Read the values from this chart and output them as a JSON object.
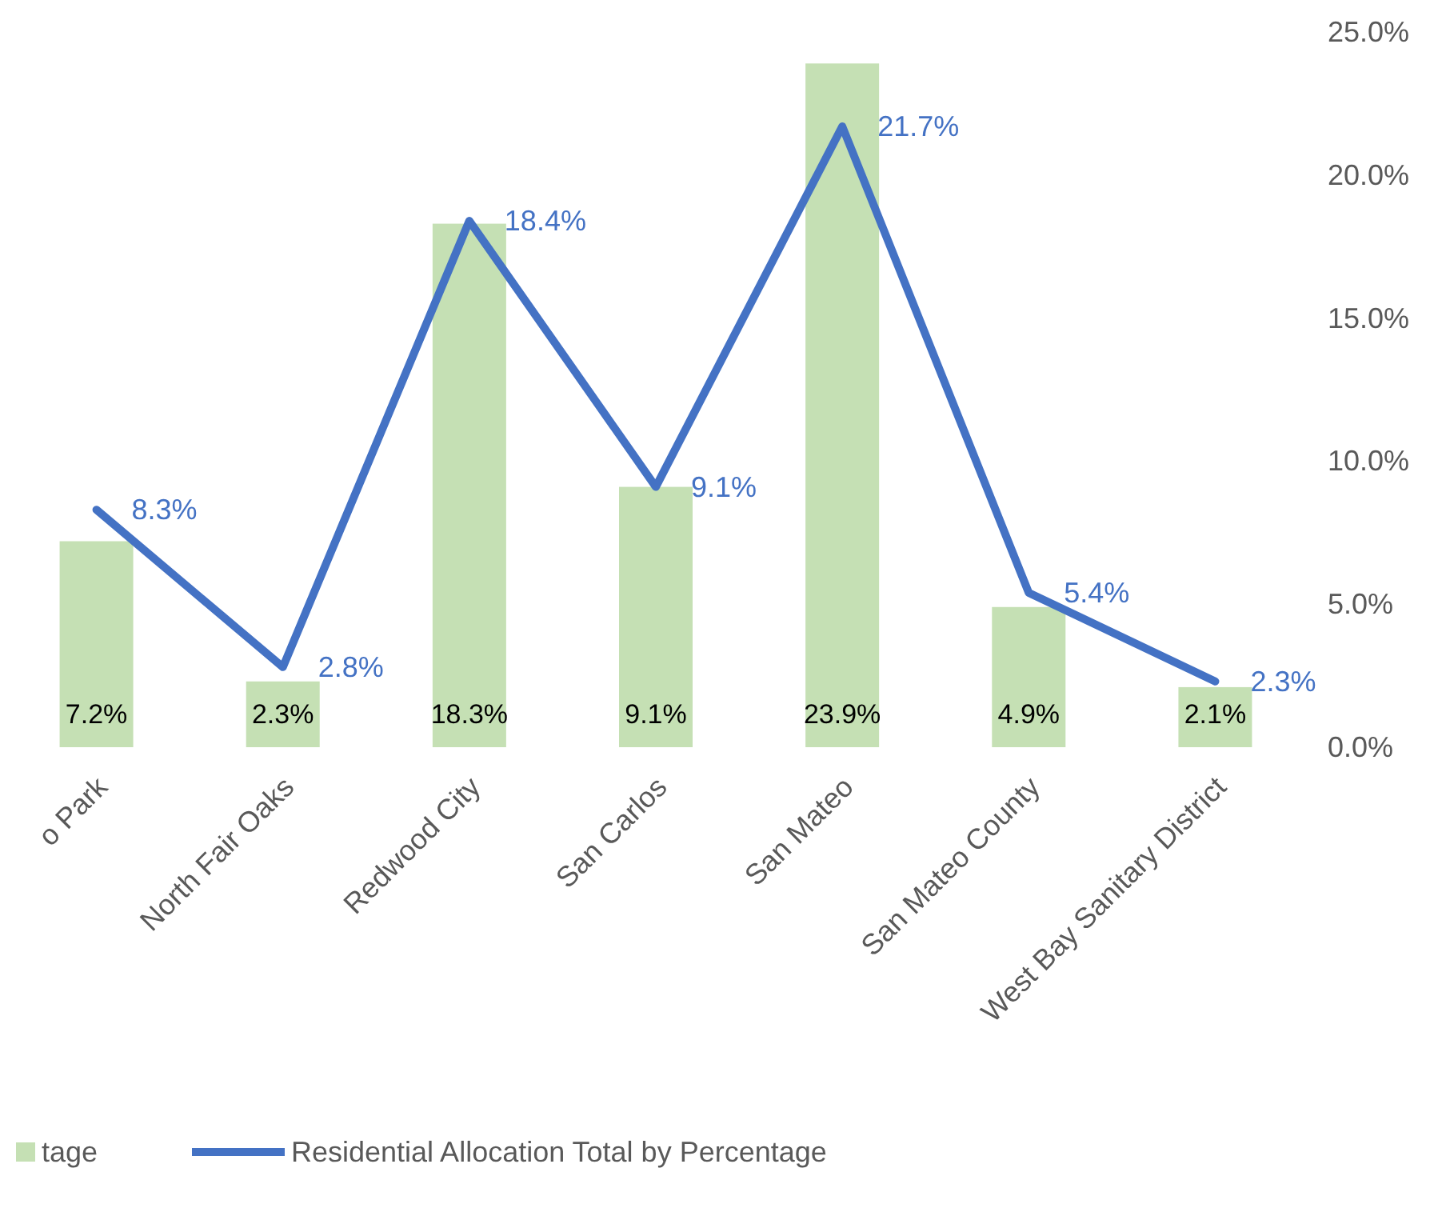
{
  "chart_data": {
    "type": "bar",
    "categories": [
      "o Park",
      "North Fair Oaks",
      "Redwood City",
      "San Carlos",
      "San Mateo",
      "San Mateo County",
      "West Bay Sanitary District"
    ],
    "series": [
      {
        "name": "tage",
        "color": "#c5e0b4",
        "values": [
          7.2,
          2.3,
          18.3,
          9.1,
          23.9,
          4.9,
          2.1
        ],
        "value_labels": [
          "7.2%",
          "2.3%",
          "18.3%",
          "9.1%",
          "23.9%",
          "4.9%",
          "2.1%"
        ]
      },
      {
        "name": "Residential Allocation Total by Percentage",
        "type": "line",
        "color": "#4472c4",
        "values": [
          8.3,
          2.8,
          18.4,
          9.1,
          21.7,
          5.4,
          2.3
        ],
        "value_labels": [
          "8.3%",
          "2.8%",
          "18.4%",
          "9.1%",
          "21.7%",
          "5.4%",
          "2.3%"
        ]
      }
    ],
    "ylim": [
      0,
      25
    ],
    "yticks": [
      {
        "value": 0,
        "label": "0.0%"
      },
      {
        "value": 5,
        "label": "5.0%"
      },
      {
        "value": 10,
        "label": "10.0%"
      },
      {
        "value": 15,
        "label": "15.0%"
      },
      {
        "value": 20,
        "label": "20.0%"
      },
      {
        "value": 25,
        "label": "25.0%"
      }
    ],
    "legend": "bottom",
    "marker": "none",
    "line_style": "solid"
  }
}
